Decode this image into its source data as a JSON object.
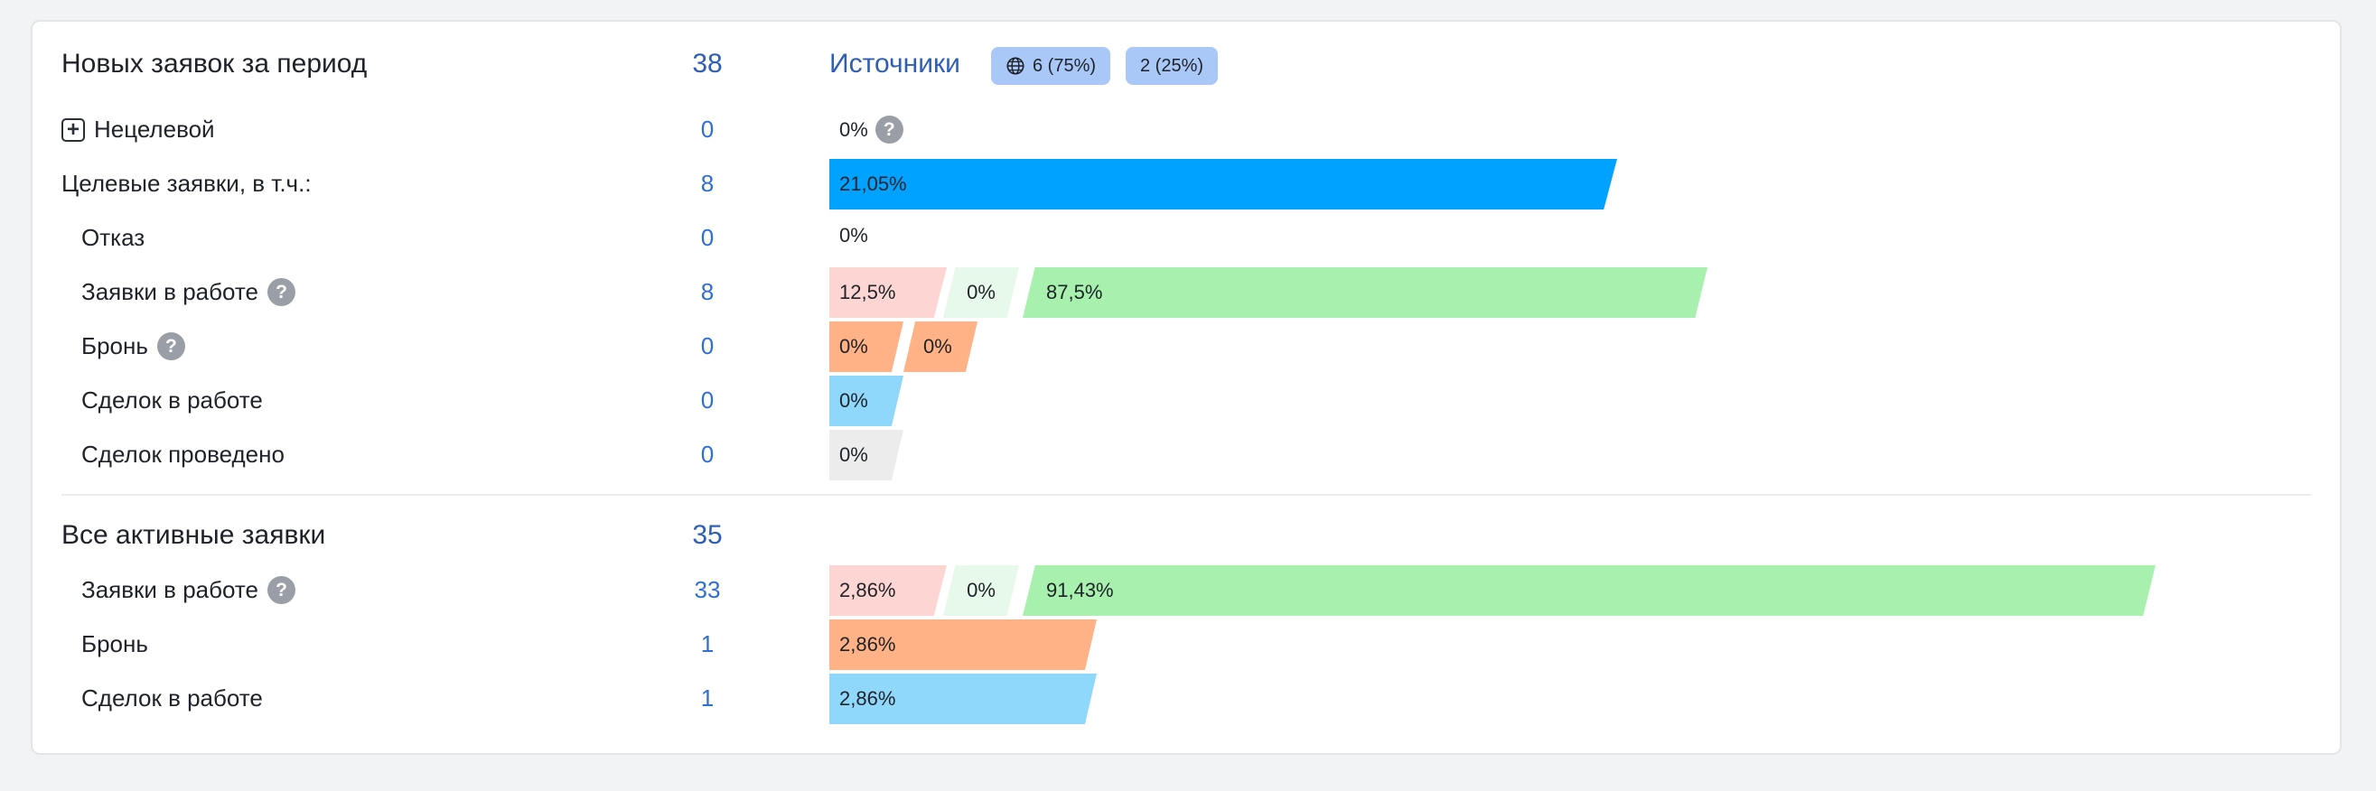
{
  "colors": {
    "accent_link": "#2f5fb3",
    "count_blue": "#2f6fd0",
    "bar_target": "#00a2ff",
    "bar_pink": "#fdd5d3",
    "bar_light_green": "#e6f9ea",
    "bar_green": "#a8f0ad",
    "bar_orange": "#feb285",
    "bar_sky": "#8fd8fb",
    "bar_gray": "#ececec",
    "chip_bg": "#a9c8f7"
  },
  "period": {
    "title": "Новых заявок за период",
    "count": "38",
    "sources": {
      "label": "Источники",
      "chip_web": {
        "icon": "globe-icon",
        "label": "6 (75%)"
      },
      "chip_other": {
        "label": "2 (25%)"
      }
    },
    "rows": [
      {
        "label": "Нецелевой",
        "count": "0",
        "pct": "0%",
        "has_plus": true,
        "has_help_after_pct": true
      },
      {
        "label": "Целевые заявки, в т.ч.:",
        "count": "8",
        "pct": "21,05%",
        "value": 21.05
      },
      {
        "label": "Отказ",
        "count": "0",
        "pct": "0%"
      },
      {
        "label": "Заявки в работе",
        "count": "8",
        "segments": [
          "12,5%",
          "0%",
          "87,5%"
        ],
        "has_help": true
      },
      {
        "label": "Бронь",
        "count": "0",
        "segments": [
          "0%",
          "0%"
        ],
        "has_help": true
      },
      {
        "label": "Сделок в работе",
        "count": "0",
        "pct": "0%"
      },
      {
        "label": "Сделок проведено",
        "count": "0",
        "pct": "0%"
      }
    ]
  },
  "active": {
    "title": "Все активные заявки",
    "count": "35",
    "rows": [
      {
        "label": "Заявки в работе",
        "count": "33",
        "segments": [
          "2,86%",
          "0%",
          "91,43%"
        ],
        "has_help": true
      },
      {
        "label": "Бронь",
        "count": "1",
        "pct": "2,86%"
      },
      {
        "label": "Сделок в работе",
        "count": "1",
        "pct": "2,86%"
      }
    ]
  }
}
